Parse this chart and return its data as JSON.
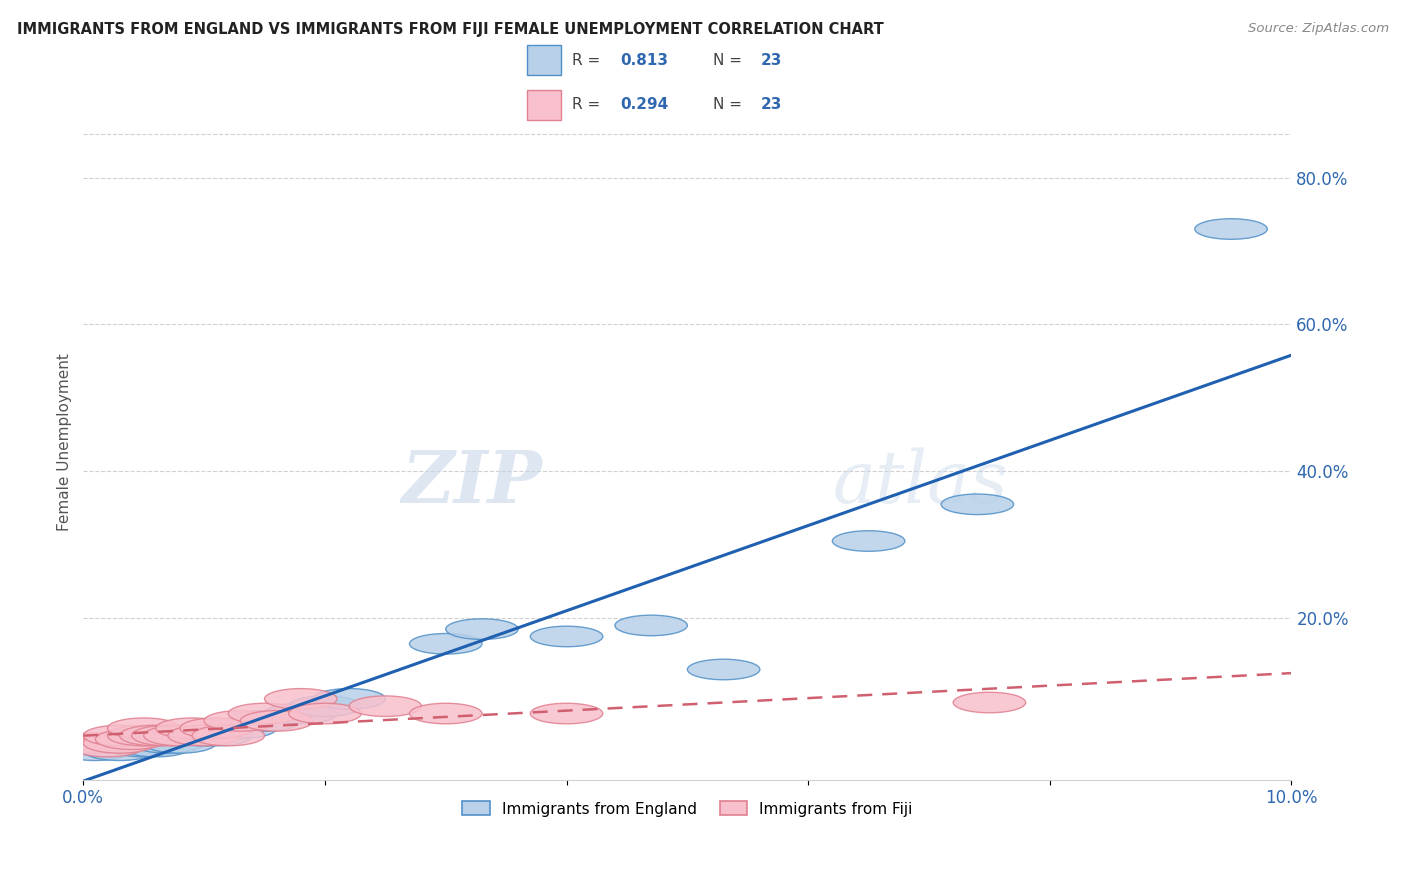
{
  "title": "IMMIGRANTS FROM ENGLAND VS IMMIGRANTS FROM FIJI FEMALE UNEMPLOYMENT CORRELATION CHART",
  "source": "Source: ZipAtlas.com",
  "ylabel": "Female Unemployment",
  "r_england": "0.813",
  "r_fiji": "0.294",
  "n_england": "23",
  "n_fiji": "23",
  "xlim": [
    0.0,
    0.1
  ],
  "ylim": [
    -0.02,
    0.9
  ],
  "x_ticks": [
    0.0,
    0.02,
    0.04,
    0.06,
    0.08,
    0.1
  ],
  "x_tick_labels": [
    "0.0%",
    "",
    "",
    "",
    "",
    "10.0%"
  ],
  "y_ticks_right": [
    0.0,
    0.2,
    0.4,
    0.6,
    0.8
  ],
  "y_tick_labels_right": [
    "",
    "20.0%",
    "40.0%",
    "60.0%",
    "80.0%"
  ],
  "england_x": [
    0.001,
    0.002,
    0.003,
    0.004,
    0.005,
    0.006,
    0.007,
    0.008,
    0.01,
    0.011,
    0.013,
    0.015,
    0.018,
    0.02,
    0.022,
    0.03,
    0.033,
    0.04,
    0.047,
    0.053,
    0.065,
    0.074,
    0.095
  ],
  "england_y": [
    0.02,
    0.025,
    0.02,
    0.03,
    0.025,
    0.025,
    0.03,
    0.03,
    0.04,
    0.04,
    0.05,
    0.06,
    0.07,
    0.08,
    0.09,
    0.165,
    0.185,
    0.175,
    0.19,
    0.13,
    0.305,
    0.355,
    0.73
  ],
  "fiji_x": [
    0.001,
    0.002,
    0.003,
    0.003,
    0.004,
    0.005,
    0.005,
    0.006,
    0.007,
    0.008,
    0.009,
    0.01,
    0.011,
    0.012,
    0.013,
    0.015,
    0.016,
    0.018,
    0.02,
    0.025,
    0.03,
    0.04,
    0.075
  ],
  "fiji_y": [
    0.03,
    0.025,
    0.03,
    0.04,
    0.035,
    0.04,
    0.05,
    0.04,
    0.04,
    0.04,
    0.05,
    0.04,
    0.05,
    0.04,
    0.06,
    0.07,
    0.06,
    0.09,
    0.07,
    0.08,
    0.07,
    0.07,
    0.085
  ],
  "color_england_fill": "#b8d0e8",
  "color_england_edge": "#5090c8",
  "color_fiji_fill": "#f8c0cc",
  "color_fiji_edge": "#e08090",
  "color_england_line": "#2060b0",
  "color_fiji_line": "#d06070",
  "color_axis_right": "#3068b0",
  "color_title": "#222222",
  "color_grid": "#d0d0d0",
  "background_color": "#ffffff",
  "watermark_zip": "ZIP",
  "watermark_atlas": "atlas",
  "legend_labels": [
    "Immigrants from England",
    "Immigrants from Fiji"
  ]
}
